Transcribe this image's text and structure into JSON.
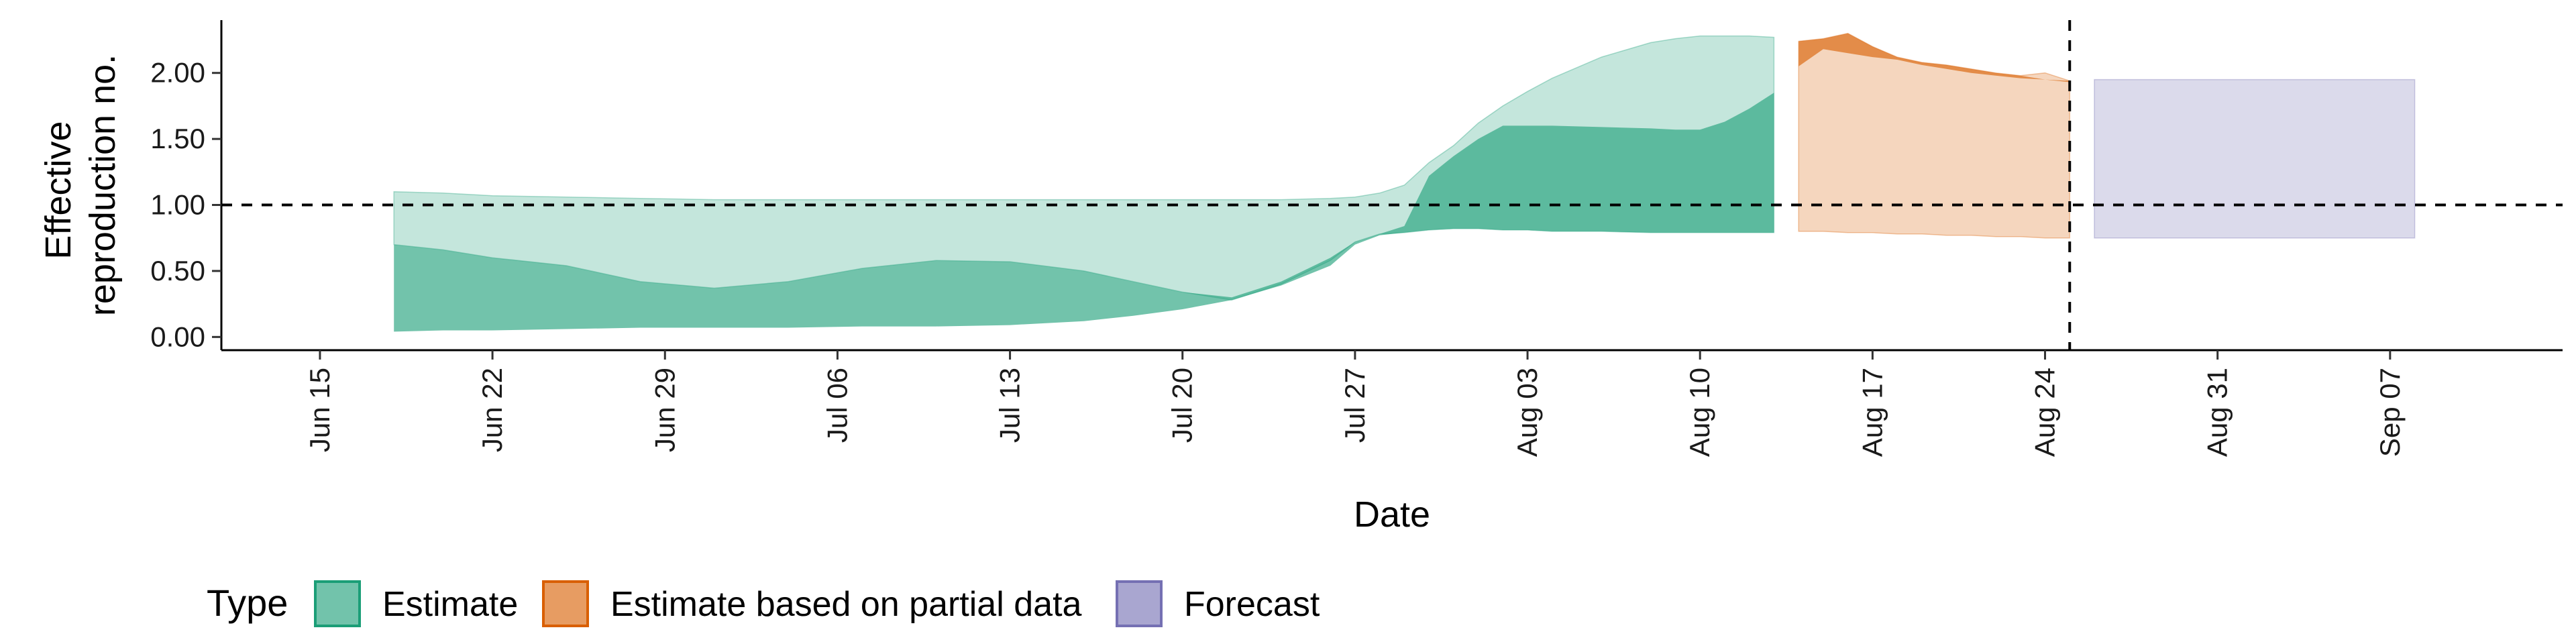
{
  "chart_data": {
    "type": "area",
    "xlabel": "Date",
    "ylabel": "Effective reproduction no.",
    "ylabel_lines": [
      "Effective",
      "reproduction no."
    ],
    "ylim": [
      -0.1,
      2.4
    ],
    "yticks": [
      0.0,
      0.5,
      1.0,
      1.5,
      2.0
    ],
    "ytick_labels": [
      "0.00",
      "0.50",
      "1.00",
      "1.50",
      "2.00"
    ],
    "xlim": [
      "2020-06-11",
      "2020-09-14"
    ],
    "xticks": [
      "2020-06-15",
      "2020-06-22",
      "2020-06-29",
      "2020-07-06",
      "2020-07-13",
      "2020-07-20",
      "2020-07-27",
      "2020-08-03",
      "2020-08-10",
      "2020-08-17",
      "2020-08-24",
      "2020-08-31",
      "2020-09-07"
    ],
    "xtick_labels": [
      "Jun 15",
      "Jun 22",
      "Jun 29",
      "Jul 06",
      "Jul 13",
      "Jul 20",
      "Jul 27",
      "Aug 03",
      "Aug 10",
      "Aug 17",
      "Aug 24",
      "Aug 31",
      "Sep 07"
    ],
    "reference_hline": 1.0,
    "reference_vline": "2020-08-25",
    "colors": {
      "Estimate": "#1b9e77",
      "Estimate based on partial data": "#d95f02",
      "Forecast": "#7570b3"
    },
    "series": [
      {
        "name": "Estimate",
        "dates": [
          "2020-06-18",
          "2020-06-20",
          "2020-06-22",
          "2020-06-25",
          "2020-06-28",
          "2020-07-01",
          "2020-07-04",
          "2020-07-07",
          "2020-07-10",
          "2020-07-13",
          "2020-07-16",
          "2020-07-18",
          "2020-07-20",
          "2020-07-22",
          "2020-07-24",
          "2020-07-26",
          "2020-07-27",
          "2020-07-28",
          "2020-07-29",
          "2020-07-30",
          "2020-07-31",
          "2020-08-01",
          "2020-08-02",
          "2020-08-03",
          "2020-08-04",
          "2020-08-06",
          "2020-08-08",
          "2020-08-09",
          "2020-08-10",
          "2020-08-11",
          "2020-08-12",
          "2020-08-13"
        ],
        "outer_lower": [
          0.7,
          0.66,
          0.6,
          0.54,
          0.42,
          0.37,
          0.42,
          0.52,
          0.58,
          0.57,
          0.5,
          0.42,
          0.34,
          0.28,
          0.4,
          0.58,
          0.72,
          0.78,
          0.79,
          0.81,
          0.82,
          0.82,
          0.81,
          0.81,
          0.8,
          0.8,
          0.79,
          0.79,
          0.79,
          0.79,
          0.79,
          0.79
        ],
        "inner_lower": [
          0.04,
          0.05,
          0.05,
          0.06,
          0.07,
          0.07,
          0.07,
          0.08,
          0.08,
          0.09,
          0.12,
          0.16,
          0.21,
          0.28,
          0.39,
          0.54,
          0.7,
          0.77,
          0.79,
          0.81,
          0.82,
          0.82,
          0.81,
          0.81,
          0.8,
          0.8,
          0.79,
          0.79,
          0.79,
          0.79,
          0.79,
          0.79
        ],
        "inner_upper": [
          0.7,
          0.66,
          0.6,
          0.54,
          0.42,
          0.37,
          0.42,
          0.52,
          0.58,
          0.57,
          0.5,
          0.42,
          0.34,
          0.3,
          0.42,
          0.6,
          0.72,
          0.78,
          0.84,
          1.22,
          1.37,
          1.5,
          1.6,
          1.6,
          1.6,
          1.59,
          1.58,
          1.57,
          1.57,
          1.63,
          1.73,
          1.85
        ],
        "outer_upper": [
          1.1,
          1.09,
          1.07,
          1.06,
          1.05,
          1.04,
          1.04,
          1.04,
          1.04,
          1.04,
          1.04,
          1.04,
          1.04,
          1.04,
          1.04,
          1.05,
          1.06,
          1.09,
          1.15,
          1.32,
          1.45,
          1.62,
          1.75,
          1.86,
          1.96,
          2.12,
          2.23,
          2.26,
          2.28,
          2.28,
          2.28,
          2.27
        ]
      },
      {
        "name": "Estimate based on partial data",
        "dates": [
          "2020-08-14",
          "2020-08-15",
          "2020-08-16",
          "2020-08-17",
          "2020-08-18",
          "2020-08-19",
          "2020-08-20",
          "2020-08-21",
          "2020-08-22",
          "2020-08-23",
          "2020-08-24",
          "2020-08-25"
        ],
        "inner_lower": [
          2.05,
          2.18,
          2.15,
          2.12,
          2.1,
          2.06,
          2.03,
          2.0,
          1.98,
          1.96,
          1.95,
          1.93
        ],
        "outer_lower": [
          0.8,
          0.8,
          0.79,
          0.79,
          0.78,
          0.78,
          0.77,
          0.77,
          0.76,
          0.76,
          0.75,
          0.75
        ],
        "inner_upper": [
          2.24,
          2.26,
          2.3,
          2.2,
          2.12,
          2.08,
          2.06,
          2.03,
          2.0,
          1.98,
          1.95,
          1.94
        ],
        "outer_upper": [
          2.24,
          2.26,
          2.3,
          2.2,
          2.12,
          2.08,
          2.06,
          2.03,
          2.0,
          1.98,
          2.0,
          1.94
        ]
      },
      {
        "name": "Forecast",
        "dates": [
          "2020-08-26",
          "2020-09-08"
        ],
        "outer_lower": [
          0.75,
          0.75
        ],
        "outer_upper": [
          1.95,
          1.95
        ]
      }
    ],
    "legend": {
      "title": "Type",
      "position": "bottom-left",
      "items": [
        "Estimate",
        "Estimate based on partial data",
        "Forecast"
      ]
    }
  }
}
